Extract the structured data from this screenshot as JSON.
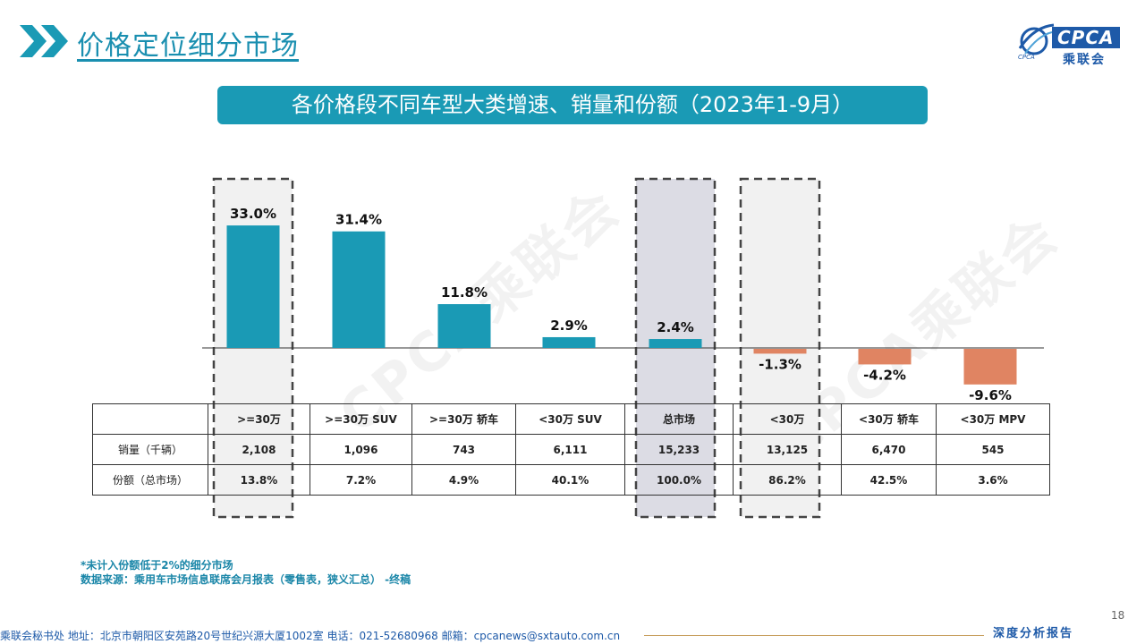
{
  "header": {
    "title": "价格定位细分市场",
    "logo_text": "CPCA",
    "logo_cn": "乘联会",
    "logo_en": "CPCA",
    "accent": "#1a8fb0"
  },
  "banner": {
    "title": "各价格段不同车型大类增速、销量和份额（2023年1-9月）"
  },
  "watermark": "CPCA乘联会",
  "chart_data": {
    "type": "bar",
    "categories": [
      ">=30万",
      ">=30万 SUV",
      ">=30万 轿车",
      "<30万 SUV",
      "总市场",
      "<30万",
      "<30万 轿车",
      "<30万 MPV"
    ],
    "values": [
      33.0,
      31.4,
      11.8,
      2.9,
      2.4,
      -1.3,
      -4.2,
      -9.6
    ],
    "value_labels": [
      "33.0%",
      "31.4%",
      "11.8%",
      "2.9%",
      "2.4%",
      "-1.3%",
      "-4.2%",
      "-9.6%"
    ],
    "ylim": [
      -10,
      34
    ],
    "colors": {
      "positive": "#1a9ab5",
      "negative": "#e08462"
    },
    "highlighted_categories": [
      0,
      4,
      5
    ]
  },
  "table": {
    "headers": [
      ">=30万",
      ">=30万 SUV",
      ">=30万 轿车",
      "<30万 SUV",
      "总市场",
      "<30万",
      "<30万 轿车",
      "<30万 MPV"
    ],
    "rows": [
      {
        "label": "销量（千辆）",
        "values": [
          "2,108",
          "1,096",
          "743",
          "6,111",
          "15,233",
          "13,125",
          "6,470",
          "545"
        ]
      },
      {
        "label": "份额（总市场）",
        "values": [
          "13.8%",
          "7.2%",
          "4.9%",
          "40.1%",
          "100.0%",
          "86.2%",
          "42.5%",
          "3.6%"
        ]
      }
    ]
  },
  "notes": {
    "line1": "*未计入份额低于2%的细分市场",
    "line2": "数据来源：乘用车市场信息联席会月报表（零售表，狭义汇总） -终稿"
  },
  "footer": {
    "contact": "乘联会秘书处  地址：北京市朝阳区安苑路20号世纪兴源大厦1002室  电话：021-52680968  邮箱：cpcanews@sxtauto.com.cn",
    "report_label": "深度分析报告",
    "page_number": "18"
  }
}
